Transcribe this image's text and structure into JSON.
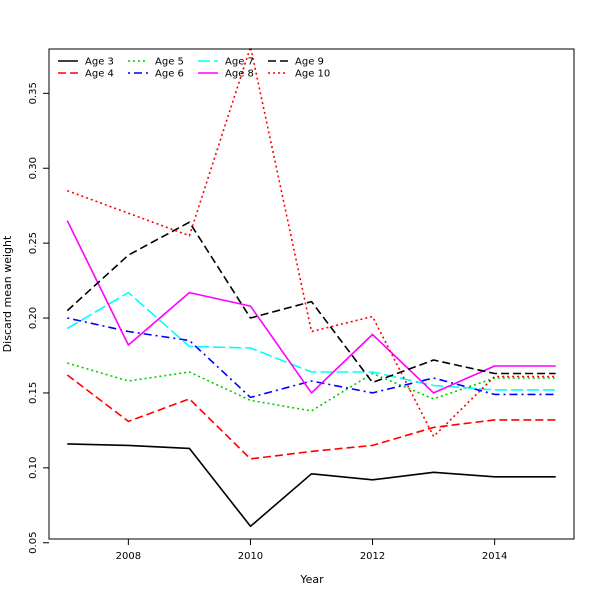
{
  "chart_data": {
    "type": "line",
    "title": "",
    "xlabel": "Year",
    "ylabel": "Discard mean weight",
    "xlim": [
      2006.7,
      2015.3
    ],
    "ylim": [
      0.0525,
      0.3796
    ],
    "x": [
      2007,
      2008,
      2009,
      2010,
      2011,
      2012,
      2013,
      2014,
      2015
    ],
    "xticks": [
      2008,
      2010,
      2012,
      2014
    ],
    "xtick_labels": [
      "2008",
      "2010",
      "2012",
      "2014"
    ],
    "yticks": [
      0.05,
      0.1,
      0.15,
      0.2,
      0.25,
      0.3,
      0.35
    ],
    "ytick_labels": [
      "0.05",
      "0.10",
      "0.15",
      "0.20",
      "0.25",
      "0.30",
      "0.35"
    ],
    "legend_position": "top-left",
    "series": [
      {
        "name": "Age 3",
        "color": "#000000",
        "dash": "solid",
        "values": [
          0.116,
          0.115,
          0.113,
          0.061,
          0.096,
          0.092,
          0.097,
          0.094,
          0.094
        ]
      },
      {
        "name": "Age 4",
        "color": "#ff0000",
        "dash": "dashed",
        "values": [
          0.162,
          0.131,
          0.146,
          0.106,
          0.111,
          0.115,
          0.127,
          0.132,
          0.132
        ]
      },
      {
        "name": "Age 5",
        "color": "#00cd00",
        "dash": "dotted",
        "values": [
          0.17,
          0.158,
          0.164,
          0.145,
          0.138,
          0.163,
          0.146,
          0.16,
          0.16
        ]
      },
      {
        "name": "Age 6",
        "color": "#0000ff",
        "dash": "dotdash",
        "values": [
          0.2,
          0.191,
          0.185,
          0.147,
          0.158,
          0.15,
          0.16,
          0.149,
          0.149
        ]
      },
      {
        "name": "Age 7",
        "color": "#00ffff",
        "dash": "longdash",
        "values": [
          0.193,
          0.217,
          0.181,
          0.18,
          0.164,
          0.164,
          0.155,
          0.152,
          0.152
        ]
      },
      {
        "name": "Age 8",
        "color": "#ff00ff",
        "dash": "solid",
        "values": [
          0.265,
          0.182,
          0.217,
          0.208,
          0.15,
          0.189,
          0.15,
          0.168,
          0.168
        ]
      },
      {
        "name": "Age 9",
        "color": "#000000",
        "dash": "dashed",
        "values": [
          0.205,
          0.242,
          0.264,
          0.2,
          0.211,
          0.157,
          0.172,
          0.163,
          0.163
        ]
      },
      {
        "name": "Age 10",
        "color": "#ff0000",
        "dash": "dotted",
        "values": [
          0.285,
          0.27,
          0.255,
          0.381,
          0.191,
          0.201,
          0.121,
          0.161,
          0.161
        ]
      }
    ]
  }
}
